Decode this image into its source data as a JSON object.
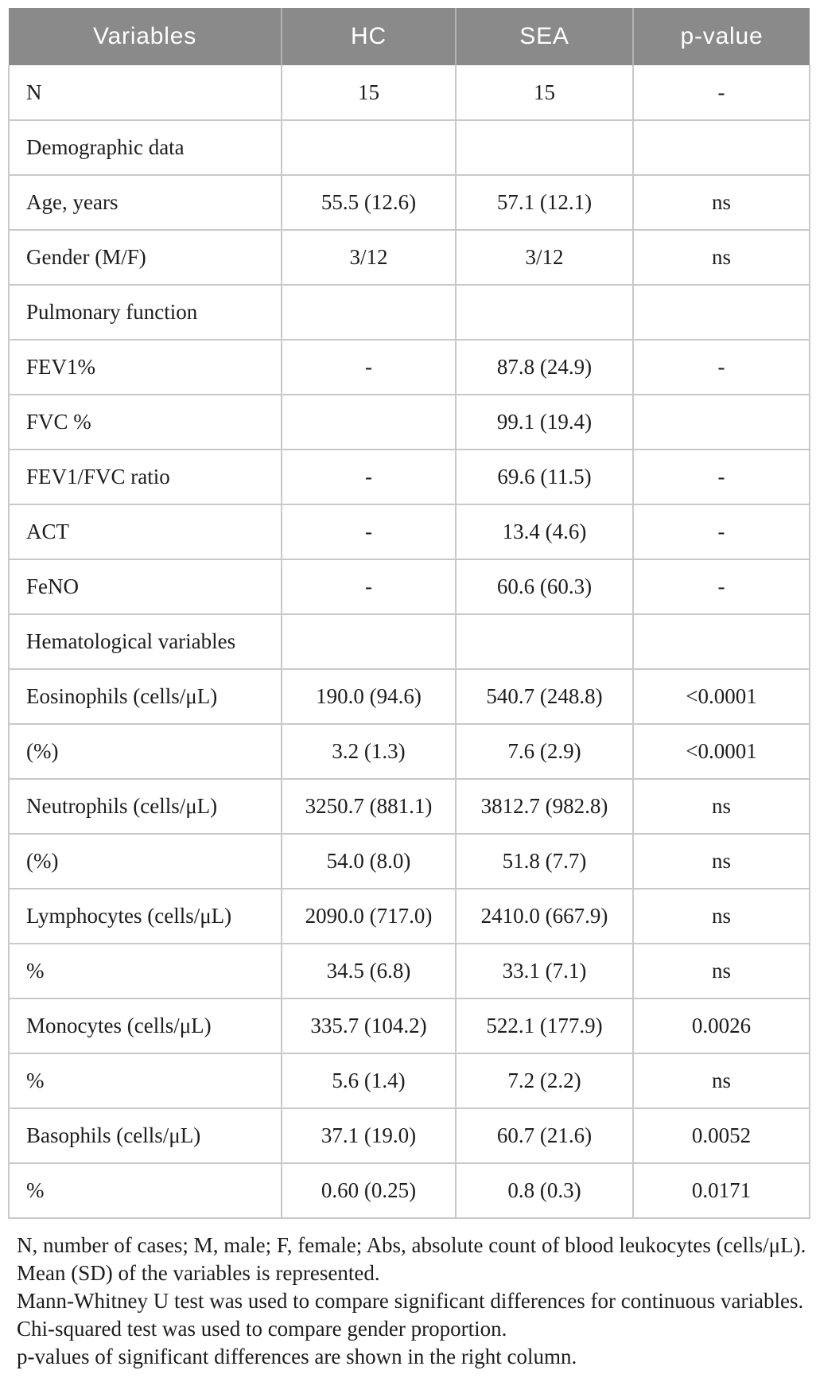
{
  "table": {
    "columns": [
      "Variables",
      "HC",
      "SEA",
      "p-value"
    ],
    "rows": [
      {
        "label": "N",
        "hc": "15",
        "sea": "15",
        "p": "-"
      },
      {
        "label": "Demographic data",
        "hc": "",
        "sea": "",
        "p": ""
      },
      {
        "label": "Age, years",
        "hc": "55.5 (12.6)",
        "sea": "57.1 (12.1)",
        "p": "ns"
      },
      {
        "label": "Gender (M/F)",
        "hc": "3/12",
        "sea": "3/12",
        "p": "ns"
      },
      {
        "label": "Pulmonary function",
        "hc": "",
        "sea": "",
        "p": ""
      },
      {
        "label": "FEV1%",
        "hc": "-",
        "sea": "87.8 (24.9)",
        "p": "-"
      },
      {
        "label": "FVC %",
        "hc": "",
        "sea": "99.1 (19.4)",
        "p": ""
      },
      {
        "label": "FEV1/FVC ratio",
        "hc": "-",
        "sea": "69.6 (11.5)",
        "p": "-"
      },
      {
        "label": "ACT",
        "hc": "-",
        "sea": "13.4 (4.6)",
        "p": "-"
      },
      {
        "label": "FeNO",
        "hc": "-",
        "sea": "60.6 (60.3)",
        "p": "-"
      },
      {
        "label": "Hematological variables",
        "hc": "",
        "sea": "",
        "p": ""
      },
      {
        "label": "Eosinophils (cells/μL)",
        "hc": "190.0 (94.6)",
        "sea": "540.7 (248.8)",
        "p": "<0.0001"
      },
      {
        "label": "(%)",
        "hc": "3.2 (1.3)",
        "sea": "7.6 (2.9)",
        "p": "<0.0001"
      },
      {
        "label": "Neutrophils (cells/μL)",
        "hc": "3250.7 (881.1)",
        "sea": "3812.7 (982.8)",
        "p": "ns"
      },
      {
        "label": "(%)",
        "hc": "54.0 (8.0)",
        "sea": "51.8 (7.7)",
        "p": "ns"
      },
      {
        "label": "Lymphocytes (cells/μL)",
        "hc": "2090.0 (717.0)",
        "sea": "2410.0 (667.9)",
        "p": "ns"
      },
      {
        "label": "%",
        "hc": "34.5 (6.8)",
        "sea": "33.1 (7.1)",
        "p": "ns"
      },
      {
        "label": "Monocytes (cells/μL)",
        "hc": "335.7 (104.2)",
        "sea": "522.1 (177.9)",
        "p": "0.0026"
      },
      {
        "label": "%",
        "hc": "5.6 (1.4)",
        "sea": "7.2 (2.2)",
        "p": "ns"
      },
      {
        "label": "Basophils (cells/μL)",
        "hc": "37.1 (19.0)",
        "sea": "60.7 (21.6)",
        "p": "0.0052"
      },
      {
        "label": "%",
        "hc": "0.60 (0.25)",
        "sea": "0.8 (0.3)",
        "p": "0.0171"
      }
    ]
  },
  "footnotes": [
    "N, number of cases; M, male; F, female; Abs, absolute count of blood leukocytes (cells/μL).",
    "Mean (SD) of the variables is represented.",
    "Mann-Whitney U test was used to compare significant differences for continuous variables.",
    "Chi-squared test was used to compare gender proportion.",
    "p-values of significant differences are shown in the right column."
  ],
  "colors": {
    "header_bg": "#8a8a8a",
    "header_text": "#ffffff",
    "header_divider": "#b3b3b3",
    "grid": "#c9c9c9",
    "text": "#1d1d1d"
  }
}
